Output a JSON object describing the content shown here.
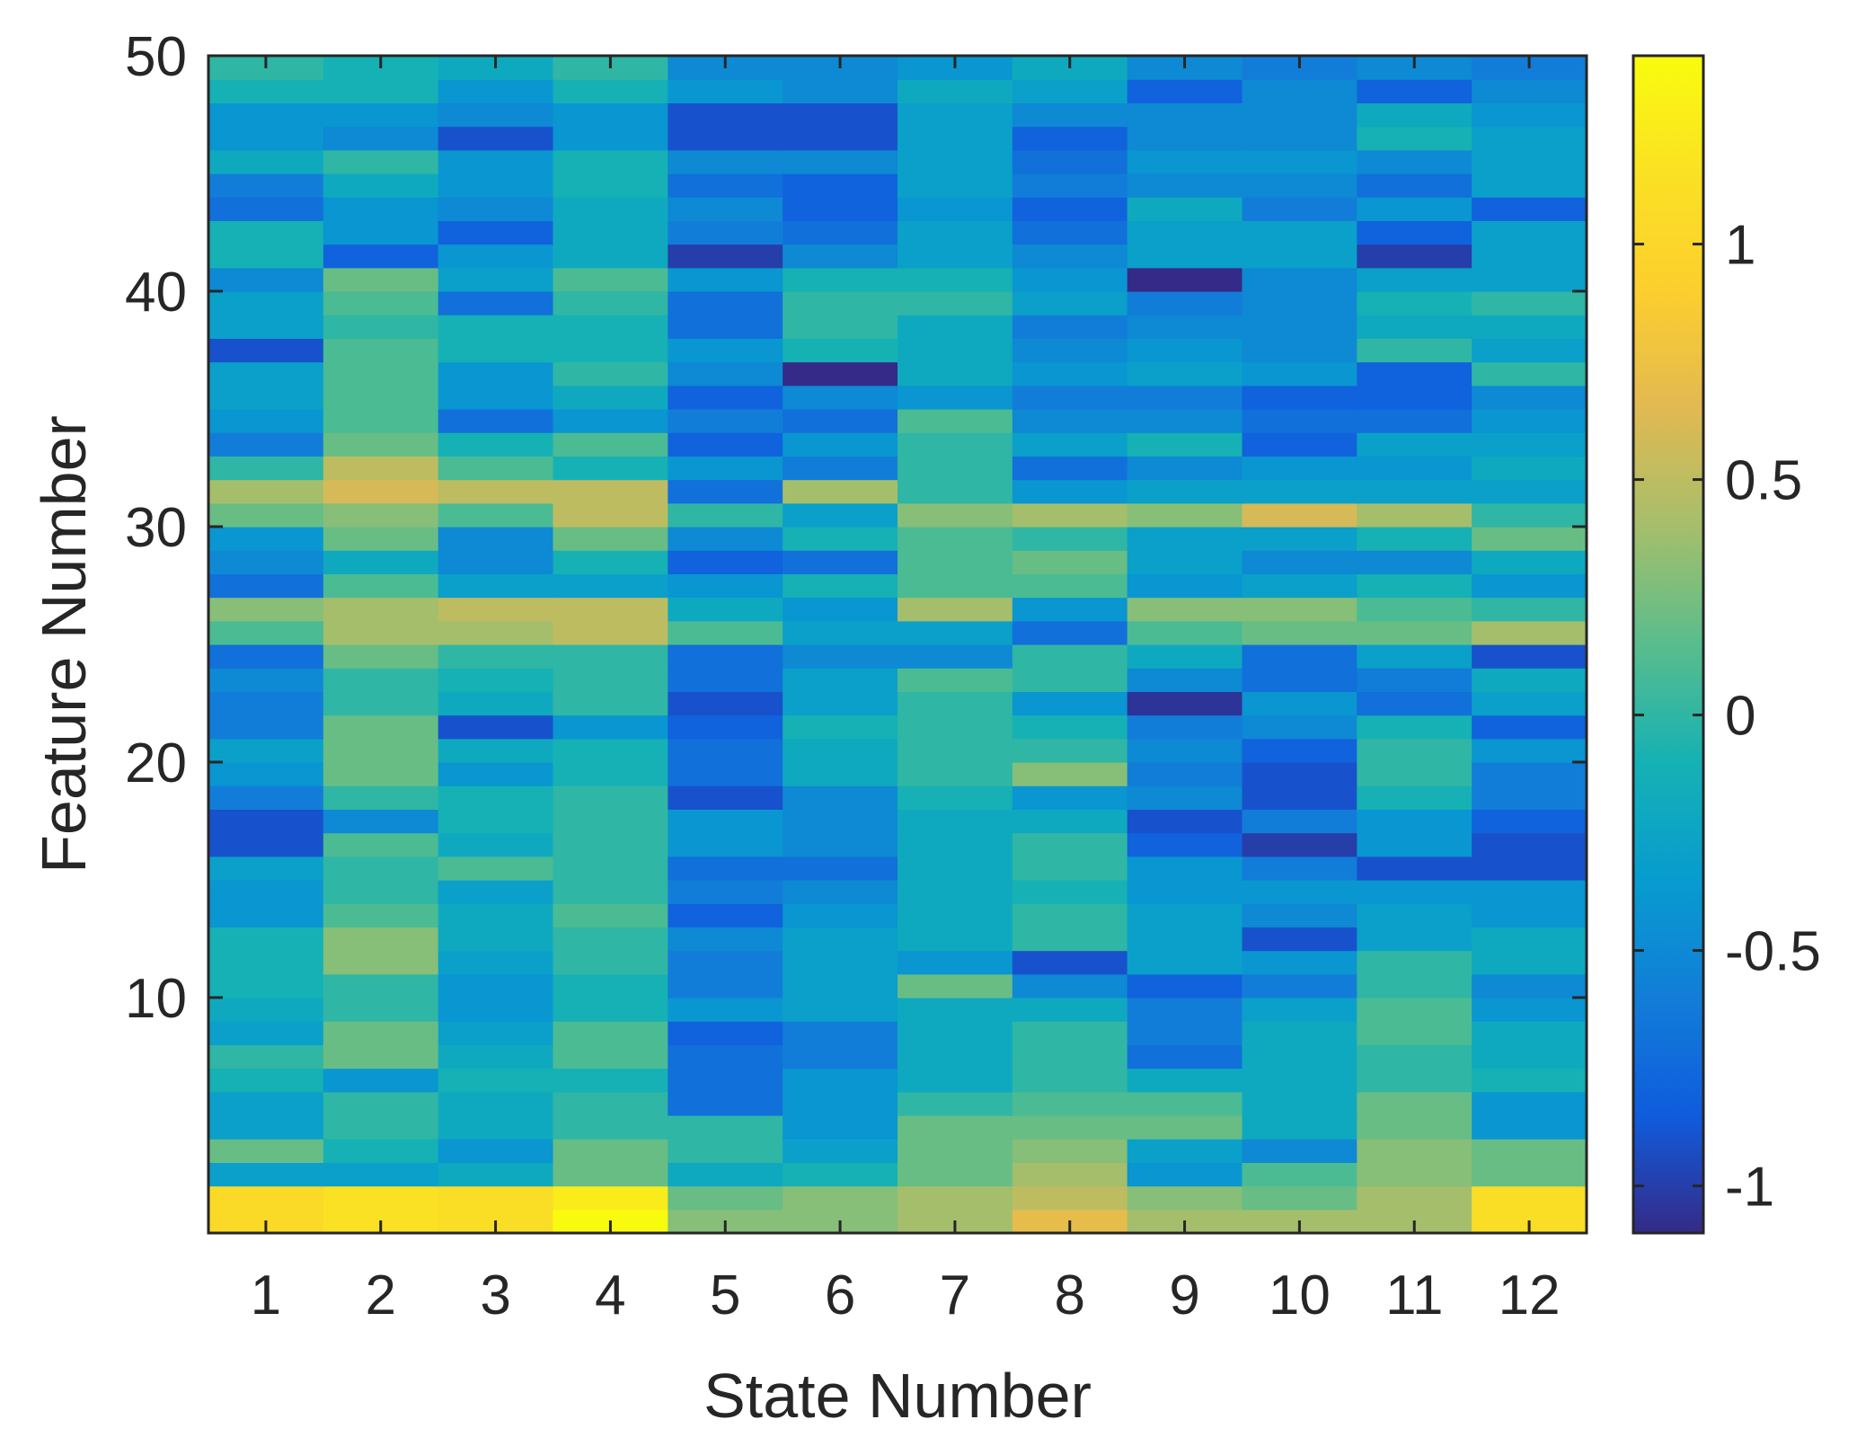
{
  "chart_data": {
    "type": "heatmap",
    "title": "",
    "xlabel": "State Number",
    "ylabel": "Feature Number",
    "x_categories": [
      1,
      2,
      3,
      4,
      5,
      6,
      7,
      8,
      9,
      10,
      11,
      12
    ],
    "x_tick_labels": [
      "1",
      "2",
      "3",
      "4",
      "5",
      "6",
      "7",
      "8",
      "9",
      "10",
      "11",
      "12"
    ],
    "y_range": [
      0,
      50
    ],
    "y_ticks": [
      10,
      20,
      30,
      40,
      50
    ],
    "y_tick_labels": [
      "10",
      "20",
      "30",
      "40",
      "50"
    ],
    "colorbar": {
      "range": [
        -1.1,
        1.4
      ],
      "ticks": [
        -1,
        -0.5,
        0,
        0.5,
        1
      ],
      "tick_labels": [
        "-1",
        "-0.5",
        "0",
        "0.5",
        "1"
      ],
      "colormap": "parula"
    },
    "grid": false,
    "rows_note": "values[f] is feature row f+1 (bottom to top), one value per state 1-12",
    "values": [
      [
        1.05,
        1.15,
        1.1,
        1.4,
        0.3,
        0.3,
        0.4,
        0.7,
        0.4,
        0.4,
        0.4,
        1.1
      ],
      [
        1.05,
        1.15,
        1.1,
        1.25,
        0.2,
        0.3,
        0.4,
        0.5,
        0.3,
        0.2,
        0.4,
        1.1
      ],
      [
        -0.3,
        -0.3,
        -0.2,
        0.2,
        -0.2,
        -0.1,
        0.2,
        0.4,
        -0.4,
        0.1,
        0.3,
        0.2
      ],
      [
        0.2,
        -0.1,
        -0.4,
        0.2,
        0.0,
        -0.3,
        0.2,
        0.3,
        -0.3,
        -0.5,
        0.3,
        0.2
      ],
      [
        -0.3,
        0.0,
        -0.2,
        0.0,
        0.0,
        -0.4,
        0.2,
        0.2,
        0.2,
        -0.2,
        0.2,
        -0.4
      ],
      [
        -0.3,
        0.0,
        -0.2,
        0.0,
        -0.7,
        -0.4,
        0.0,
        0.1,
        0.1,
        -0.2,
        0.2,
        -0.4
      ],
      [
        -0.1,
        -0.4,
        -0.1,
        -0.1,
        -0.7,
        -0.4,
        -0.2,
        0.0,
        -0.2,
        -0.2,
        0.0,
        -0.1
      ],
      [
        0.0,
        0.2,
        -0.2,
        0.1,
        -0.7,
        -0.6,
        -0.2,
        0.0,
        -0.7,
        -0.2,
        0.0,
        -0.2
      ],
      [
        -0.3,
        0.2,
        -0.3,
        0.1,
        -0.8,
        -0.6,
        -0.2,
        0.0,
        -0.6,
        -0.2,
        0.1,
        -0.2
      ],
      [
        -0.2,
        0.0,
        -0.4,
        -0.1,
        -0.4,
        -0.3,
        -0.2,
        -0.2,
        -0.6,
        -0.3,
        0.1,
        -0.4
      ],
      [
        -0.1,
        0.0,
        -0.4,
        -0.1,
        -0.6,
        -0.3,
        0.2,
        -0.5,
        -0.8,
        -0.6,
        0.0,
        -0.5
      ],
      [
        -0.1,
        0.3,
        -0.3,
        0.0,
        -0.6,
        -0.3,
        -0.4,
        -0.9,
        -0.3,
        -0.4,
        0.0,
        -0.2
      ],
      [
        -0.1,
        0.3,
        -0.2,
        0.0,
        -0.5,
        -0.3,
        -0.2,
        0.0,
        -0.3,
        -0.9,
        -0.3,
        -0.2
      ],
      [
        -0.4,
        0.1,
        -0.2,
        0.1,
        -0.8,
        -0.4,
        -0.2,
        0.0,
        -0.3,
        -0.5,
        -0.3,
        -0.4
      ],
      [
        -0.4,
        0.0,
        -0.3,
        0.0,
        -0.6,
        -0.5,
        -0.2,
        -0.1,
        -0.4,
        -0.4,
        -0.4,
        -0.4
      ],
      [
        -0.3,
        0.0,
        0.1,
        0.0,
        -0.7,
        -0.7,
        -0.2,
        0.0,
        -0.4,
        -0.6,
        -0.9,
        -0.9
      ],
      [
        -0.9,
        0.1,
        -0.2,
        0.0,
        -0.4,
        -0.5,
        -0.2,
        0.0,
        -0.8,
        -1.0,
        -0.4,
        -0.9
      ],
      [
        -0.9,
        -0.5,
        -0.1,
        0.0,
        -0.4,
        -0.5,
        -0.2,
        -0.2,
        -0.9,
        -0.6,
        -0.4,
        -0.8
      ],
      [
        -0.6,
        0.0,
        -0.1,
        0.0,
        -0.9,
        -0.5,
        -0.1,
        -0.4,
        -0.5,
        -0.9,
        -0.1,
        -0.6
      ],
      [
        -0.4,
        0.2,
        -0.4,
        -0.1,
        -0.7,
        -0.2,
        0.0,
        0.3,
        -0.6,
        -0.9,
        0.0,
        -0.6
      ],
      [
        -0.3,
        0.2,
        -0.2,
        -0.1,
        -0.7,
        -0.2,
        0.0,
        0.0,
        -0.5,
        -0.8,
        0.0,
        -0.4
      ],
      [
        -0.6,
        0.2,
        -0.9,
        -0.4,
        -0.8,
        -0.1,
        0.0,
        -0.1,
        -0.6,
        -0.5,
        -0.1,
        -0.8
      ],
      [
        -0.6,
        0.0,
        -0.2,
        0.0,
        -0.9,
        -0.3,
        0.0,
        -0.4,
        -1.05,
        -0.4,
        -0.7,
        -0.3
      ],
      [
        -0.5,
        0.0,
        -0.1,
        0.0,
        -0.7,
        -0.3,
        0.1,
        0.0,
        -0.5,
        -0.7,
        -0.6,
        -0.2
      ],
      [
        -0.7,
        0.2,
        0.0,
        0.0,
        -0.7,
        -0.5,
        -0.5,
        0.0,
        -0.2,
        -0.7,
        -0.3,
        -0.9
      ],
      [
        0.1,
        0.4,
        0.4,
        0.5,
        0.1,
        -0.3,
        -0.3,
        -0.7,
        0.1,
        0.2,
        0.2,
        0.4
      ],
      [
        0.3,
        0.4,
        0.5,
        0.5,
        -0.2,
        -0.4,
        0.4,
        -0.4,
        0.3,
        0.3,
        0.1,
        0.0
      ],
      [
        -0.7,
        0.1,
        -0.3,
        -0.3,
        -0.4,
        -0.1,
        0.1,
        0.1,
        -0.4,
        -0.3,
        -0.1,
        -0.4
      ],
      [
        -0.5,
        -0.2,
        -0.5,
        -0.1,
        -0.8,
        -0.7,
        0.1,
        0.2,
        -0.3,
        -0.5,
        -0.5,
        -0.2
      ],
      [
        -0.4,
        0.2,
        -0.5,
        0.2,
        -0.5,
        -0.1,
        0.1,
        0.0,
        -0.3,
        -0.3,
        -0.1,
        0.2
      ],
      [
        0.2,
        0.3,
        0.1,
        0.5,
        0.0,
        -0.3,
        0.3,
        0.4,
        0.3,
        0.6,
        0.4,
        0.0
      ],
      [
        0.4,
        0.6,
        0.5,
        0.5,
        -0.7,
        0.4,
        0.0,
        -0.4,
        -0.3,
        -0.3,
        -0.3,
        -0.3
      ],
      [
        0.0,
        0.5,
        0.1,
        -0.1,
        -0.4,
        -0.6,
        0.0,
        -0.7,
        -0.5,
        -0.4,
        -0.4,
        -0.2
      ],
      [
        -0.6,
        0.2,
        -0.1,
        0.1,
        -0.8,
        -0.4,
        0.0,
        -0.3,
        -0.1,
        -0.8,
        -0.3,
        -0.3
      ],
      [
        -0.4,
        0.1,
        -0.7,
        -0.4,
        -0.6,
        -0.7,
        0.1,
        -0.5,
        -0.5,
        -0.7,
        -0.7,
        -0.4
      ],
      [
        -0.3,
        0.1,
        -0.4,
        -0.2,
        -0.8,
        -0.5,
        -0.4,
        -0.6,
        -0.6,
        -0.8,
        -0.8,
        -0.5
      ],
      [
        -0.3,
        0.1,
        -0.4,
        0.0,
        -0.5,
        -1.1,
        -0.2,
        -0.4,
        -0.3,
        -0.4,
        -0.8,
        0.0
      ],
      [
        -0.9,
        0.1,
        -0.1,
        -0.1,
        -0.4,
        -0.1,
        -0.2,
        -0.5,
        -0.4,
        -0.5,
        0.0,
        -0.3
      ],
      [
        -0.3,
        0.0,
        -0.1,
        -0.1,
        -0.7,
        0.0,
        -0.2,
        -0.6,
        -0.5,
        -0.5,
        -0.2,
        -0.2
      ],
      [
        -0.3,
        0.1,
        -0.7,
        0.0,
        -0.7,
        0.0,
        0.0,
        -0.3,
        -0.6,
        -0.5,
        -0.1,
        0.0
      ],
      [
        -0.5,
        0.2,
        -0.3,
        0.1,
        -0.4,
        -0.1,
        -0.1,
        -0.4,
        -1.1,
        -0.5,
        -0.3,
        -0.3
      ],
      [
        -0.1,
        -0.8,
        -0.4,
        -0.2,
        -1.0,
        -0.5,
        -0.3,
        -0.5,
        -0.3,
        -0.3,
        -1.0,
        -0.3
      ],
      [
        -0.1,
        -0.4,
        -0.8,
        -0.2,
        -0.6,
        -0.7,
        -0.3,
        -0.7,
        -0.3,
        -0.3,
        -0.8,
        -0.3
      ],
      [
        -0.7,
        -0.4,
        -0.5,
        -0.2,
        -0.5,
        -0.8,
        -0.4,
        -0.8,
        -0.2,
        -0.6,
        -0.4,
        -0.8
      ],
      [
        -0.6,
        -0.2,
        -0.4,
        -0.1,
        -0.7,
        -0.8,
        -0.3,
        -0.6,
        -0.5,
        -0.5,
        -0.7,
        -0.3
      ],
      [
        -0.2,
        0.0,
        -0.4,
        -0.1,
        -0.5,
        -0.5,
        -0.3,
        -0.7,
        -0.4,
        -0.4,
        -0.5,
        -0.3
      ],
      [
        -0.4,
        -0.5,
        -0.9,
        -0.4,
        -0.9,
        -0.9,
        -0.3,
        -0.8,
        -0.5,
        -0.5,
        -0.1,
        -0.3
      ],
      [
        -0.4,
        -0.4,
        -0.5,
        -0.4,
        -0.9,
        -0.9,
        -0.3,
        -0.5,
        -0.5,
        -0.5,
        -0.2,
        -0.4
      ],
      [
        -0.1,
        -0.1,
        -0.4,
        -0.1,
        -0.4,
        -0.5,
        -0.2,
        -0.3,
        -0.8,
        -0.5,
        -0.8,
        -0.5
      ],
      [
        0.0,
        -0.1,
        -0.2,
        0.0,
        -0.5,
        -0.5,
        -0.4,
        -0.2,
        -0.5,
        -0.6,
        -0.5,
        -0.6
      ]
    ]
  }
}
